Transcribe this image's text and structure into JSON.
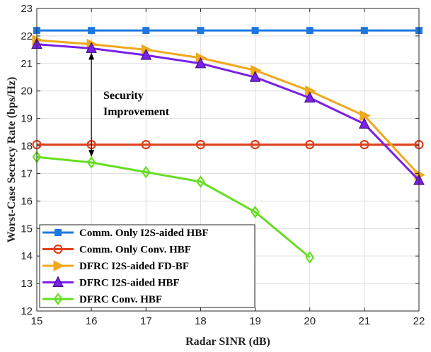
{
  "chart_data": {
    "type": "line",
    "title": "",
    "xlabel": "Radar SINR (dB)",
    "ylabel": "Worst-Case Secrecy Rate (bps/Hz)",
    "xlim": [
      15,
      22
    ],
    "ylim": [
      12,
      23
    ],
    "xticks": [
      "15",
      "16",
      "17",
      "18",
      "19",
      "20",
      "21",
      "22"
    ],
    "yticks": [
      "12",
      "13",
      "14",
      "15",
      "16",
      "17",
      "18",
      "19",
      "20",
      "21",
      "22",
      "23"
    ],
    "grid": true,
    "legend_position": "bottom-left",
    "annotation": {
      "lines": [
        "Security",
        "Improvement"
      ],
      "x": 16,
      "y_from": 21.55,
      "y_to": 17.45
    },
    "series": [
      {
        "name": "Comm. Only I2S-aided HBF",
        "color": "#1f77e0",
        "marker": "square",
        "x": [
          15,
          16,
          17,
          18,
          19,
          20,
          21,
          22
        ],
        "values": [
          22.2,
          22.2,
          22.2,
          22.2,
          22.2,
          22.2,
          22.2,
          22.2
        ]
      },
      {
        "name": "Comm. Only Conv. HBF",
        "color": "#e0401a",
        "marker": "circle",
        "x": [
          15,
          16,
          17,
          18,
          19,
          20,
          21,
          22
        ],
        "values": [
          18.05,
          18.05,
          18.05,
          18.05,
          18.05,
          18.05,
          18.05,
          18.05
        ]
      },
      {
        "name": "DFRC I2S-aided FD-BF",
        "color": "#f0a81c",
        "marker": "triangle-right",
        "x": [
          15,
          16,
          17,
          18,
          19,
          20,
          21,
          22
        ],
        "values": [
          21.85,
          21.7,
          21.5,
          21.2,
          20.75,
          20.0,
          19.1,
          16.95
        ]
      },
      {
        "name": "DFRC I2S-aided HBF",
        "color": "#7a20e8",
        "marker": "triangle-up",
        "x": [
          15,
          16,
          17,
          18,
          19,
          20,
          21,
          22
        ],
        "values": [
          21.7,
          21.55,
          21.3,
          21.0,
          20.5,
          19.75,
          18.8,
          16.75
        ]
      },
      {
        "name": "DFRC Conv. HBF",
        "color": "#66dd22",
        "marker": "diamond",
        "x": [
          15,
          16,
          17,
          18,
          19,
          20
        ],
        "values": [
          17.6,
          17.4,
          17.05,
          16.7,
          15.6,
          13.95
        ]
      }
    ]
  }
}
